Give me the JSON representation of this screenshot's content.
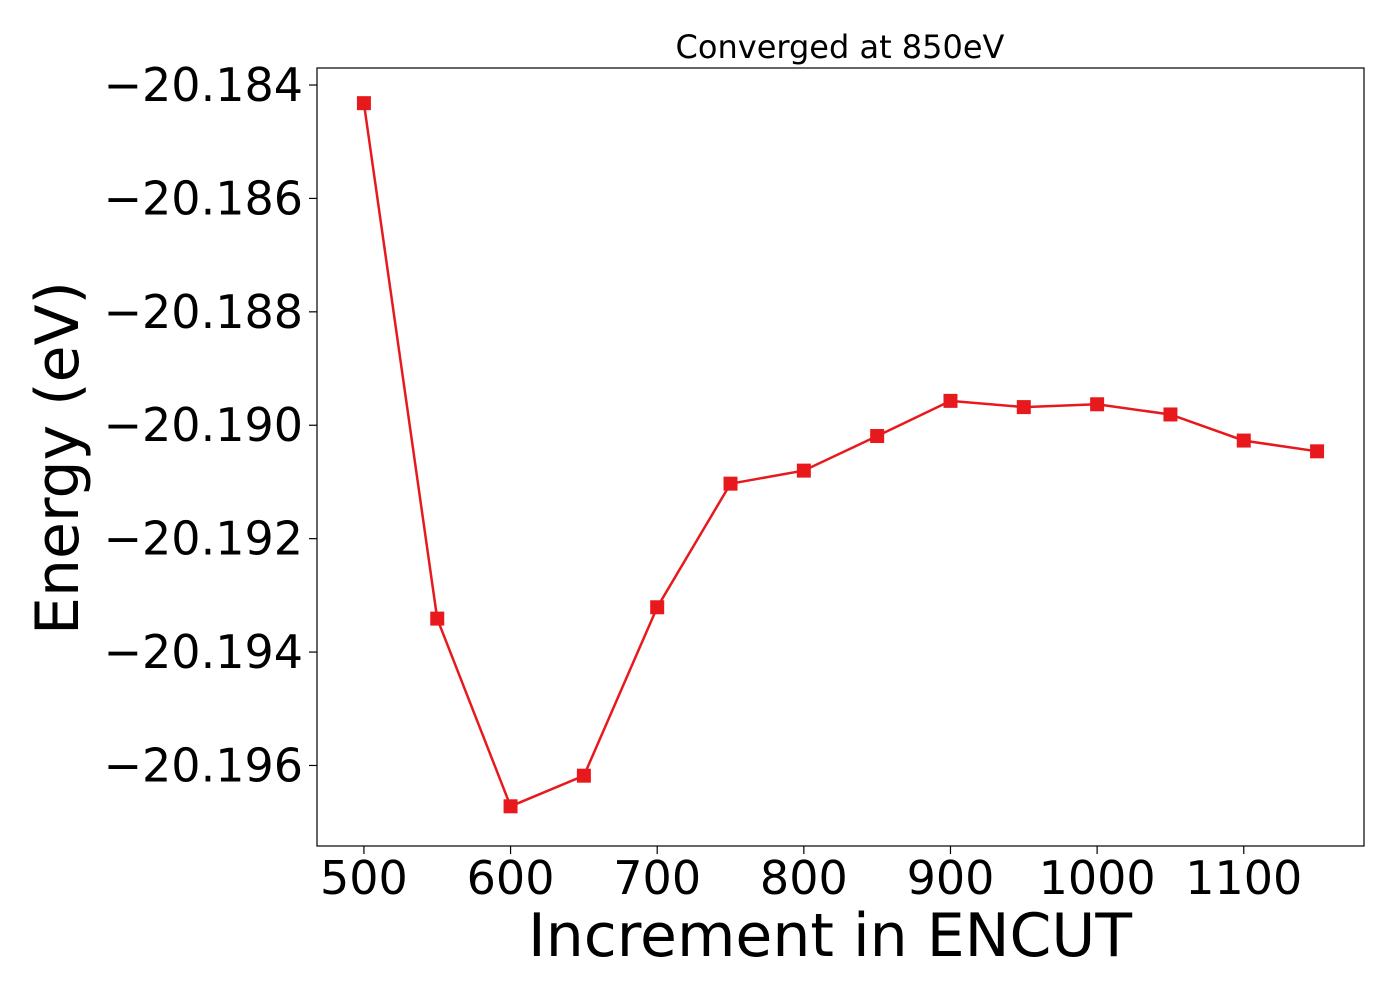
{
  "chart_data": {
    "type": "line",
    "title": "Converged at 850eV",
    "xlabel": "Increment in ENCUT",
    "ylabel": "Energy (eV)",
    "xlim": [
      468,
      1182
    ],
    "ylim": [
      -20.19742,
      -20.1837
    ],
    "xticks": [
      500,
      600,
      700,
      800,
      900,
      1000,
      1100
    ],
    "xtick_labels": [
      "500",
      "600",
      "700",
      "800",
      "900",
      "1000",
      "1100"
    ],
    "yticks": [
      -20.184,
      -20.186,
      -20.188,
      -20.19,
      -20.192,
      -20.194,
      -20.196
    ],
    "ytick_labels": [
      "−20.184",
      "−20.186",
      "−20.188",
      "−20.190",
      "−20.192",
      "−20.194",
      "−20.196"
    ],
    "grid": false,
    "color": "#e8191d",
    "marker": "square",
    "series": [
      {
        "x": [
          500,
          550,
          600,
          650,
          700,
          750,
          800,
          850,
          900,
          950,
          1000,
          1050,
          1100,
          1150
        ],
        "y": [
          -20.18432,
          -20.19341,
          -20.19672,
          -20.19618,
          -20.19321,
          -20.19103,
          -20.1908,
          -20.19019,
          -20.18957,
          -20.18968,
          -20.18963,
          -20.18981,
          -20.19027,
          -20.19046
        ]
      }
    ]
  }
}
